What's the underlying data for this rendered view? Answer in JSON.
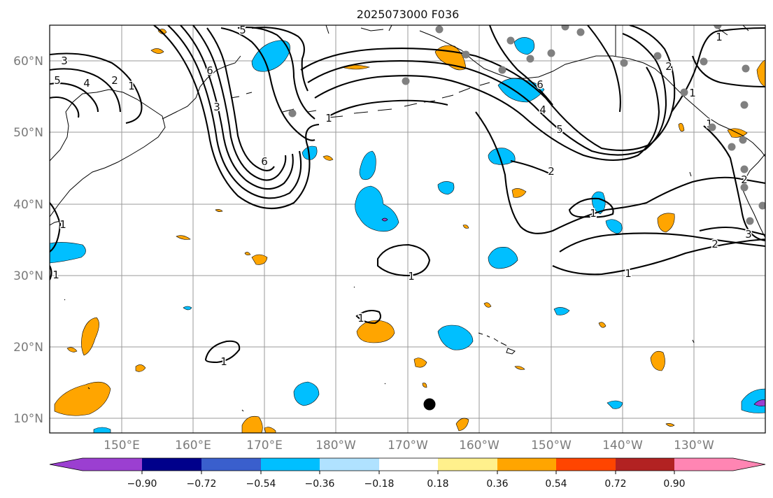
{
  "title": "2025073000 F036",
  "lat_labels": [
    "60°N",
    "50°N",
    "40°N",
    "30°N",
    "20°N",
    "10°N"
  ],
  "lon_labels": [
    "150°E",
    "160°E",
    "170°E",
    "180°W",
    "170°W",
    "160°W",
    "150°W",
    "140°W",
    "130°W"
  ],
  "colorbar": {
    "tick_labels": [
      "−0.90",
      "−0.72",
      "−0.54",
      "−0.36",
      "−0.18",
      "0.18",
      "0.36",
      "0.54",
      "0.72",
      "0.90"
    ],
    "colors": [
      "#9b3fd1",
      "#00008b",
      "#3a5fcd",
      "#00bfff",
      "#b0e2ff",
      "#ffffff",
      "#fff08c",
      "#ffa500",
      "#ff4500",
      "#b22222",
      "#ff85b3"
    ]
  },
  "colors": {
    "positive_fill": "#ffa500",
    "negative_fill": "#00bfff",
    "contour": "#000000",
    "station_marker": "#808080",
    "storm_marker": "#000000"
  },
  "contour_labels": [
    "5",
    "3",
    "4",
    "5",
    "2",
    "1",
    "6",
    "6",
    "3",
    "1",
    "4",
    "5",
    "6",
    "1",
    "2",
    "1",
    "1",
    "2",
    "3",
    "1",
    "1",
    "1",
    "1",
    "1",
    "1",
    "2",
    "2",
    "1"
  ]
}
